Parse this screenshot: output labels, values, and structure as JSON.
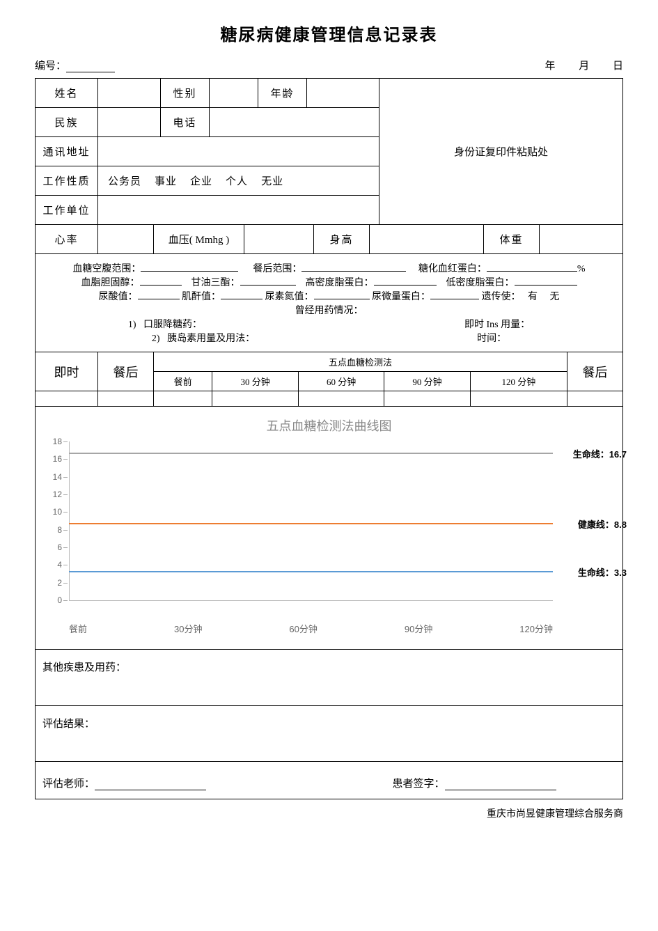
{
  "title": "糖尿病健康管理信息记录表",
  "top": {
    "id_label": "编号：",
    "date_y": "年",
    "date_m": "月",
    "date_d": "日"
  },
  "basic": {
    "name": "姓名",
    "sex": "性别",
    "age": "年龄",
    "ethnic": "民族",
    "phone": "电话",
    "address": "通讯地址",
    "worktype": "工作性质",
    "worktype_opts": [
      "公务员",
      "事业",
      "企业",
      "个人",
      "无业"
    ],
    "workunit": "工作单位",
    "idcopy": "身份证复印件粘贴处"
  },
  "vitals": {
    "hr": "心率",
    "bp": "血压( Mmhg )",
    "height": "身高",
    "weight": "体重"
  },
  "labs": {
    "l1a": "血糖空腹范围：",
    "l1b": "餐后范围：",
    "l1c": "糖化血红蛋白：",
    "pct": "%",
    "l2a": "血脂胆固醇：",
    "l2b": "甘油三酯：",
    "l2c": "高密度脂蛋白：",
    "l2d": "低密度脂蛋白：",
    "l3a": "尿酸值：",
    "l3b": "肌酐值：",
    "l3c": "尿素氮值：",
    "l3d": "尿微量蛋白：",
    "l3e": "遗传使：",
    "l3_yes": "有",
    "l3_no": "无",
    "hist": "曾经用药情况：",
    "m1_idx": "1)",
    "m1": "口服降糖药：",
    "m1_r": "即时 Ins 用量：",
    "m2_idx": "2)",
    "m2": "胰岛素用量及用法：",
    "m2_r": "时间："
  },
  "five": {
    "col_instant": "即时",
    "col_after": "餐后",
    "header": "五点血糖检测法",
    "sub": [
      "餐前",
      "30 分钟",
      "60 分钟",
      "90 分钟",
      "120 分钟"
    ]
  },
  "chart": {
    "title": "五点血糖检测法曲线图",
    "ylim": [
      0,
      18
    ],
    "ytick_step": 2,
    "yticks": [
      0,
      2,
      4,
      6,
      8,
      10,
      12,
      14,
      16,
      18
    ],
    "xlabels": [
      "餐前",
      "30分钟",
      "60分钟",
      "90分钟",
      "120分钟"
    ],
    "lines": [
      {
        "y": 16.7,
        "color": "#a6a6a6",
        "label": "生命线：16.7"
      },
      {
        "y": 8.8,
        "color": "#ed7d31",
        "label": "健康线：8.8"
      },
      {
        "y": 3.3,
        "color": "#5b9bd5",
        "label": "生命线：3.3"
      }
    ],
    "line_width": 2,
    "axis_color": "#bbbbbb",
    "tick_color": "#666666",
    "title_color": "#888888",
    "background": "#ffffff"
  },
  "sections": {
    "other": "其他疾患及用药：",
    "result": "评估结果：",
    "teacher": "评估老师：",
    "patient": "患者签字："
  },
  "footer": "重庆市尚昱健康管理综合服务商"
}
